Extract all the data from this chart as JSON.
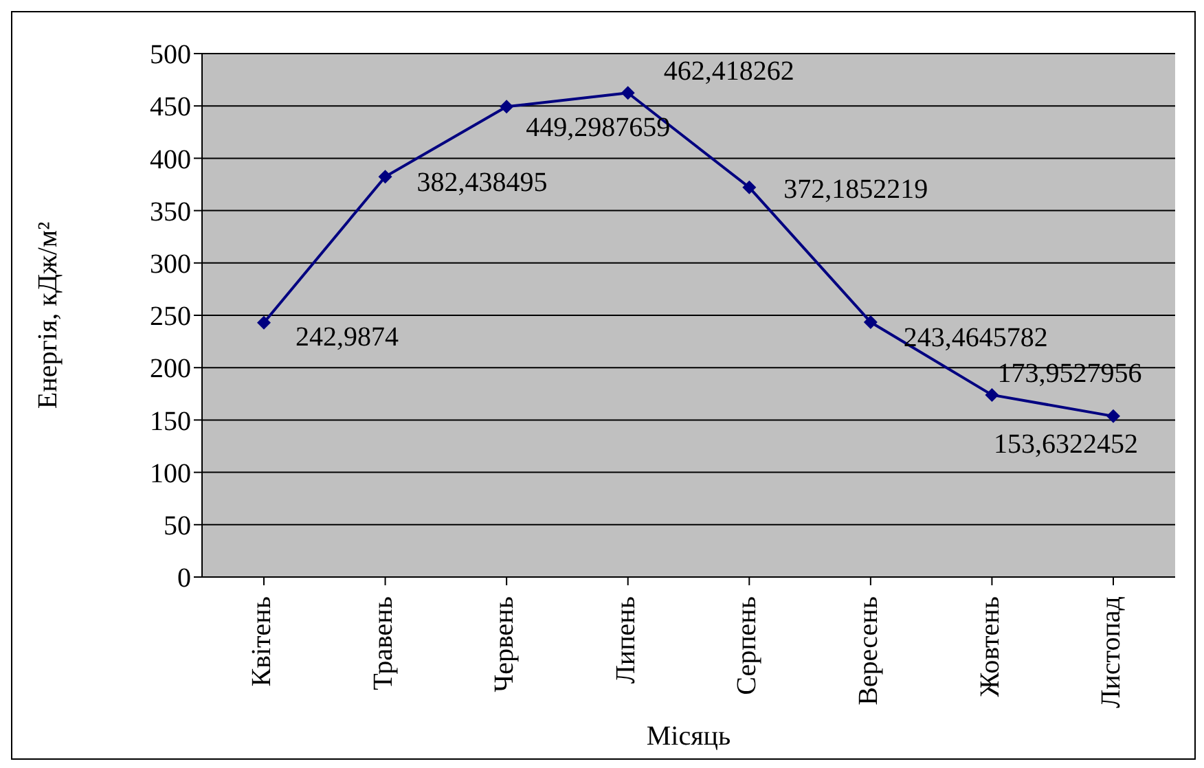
{
  "chart_data": {
    "type": "line",
    "xlabel": "Місяць",
    "ylabel": "Енергія, кДж/м²",
    "categories": [
      "Квітень",
      "Травень",
      "Червень",
      "Липень",
      "Серпень",
      "Вересень",
      "Жовтень",
      "Листопад"
    ],
    "series": [
      {
        "color": "#000080",
        "values": [
          242.9874,
          382.438495,
          449.2987659,
          462.418262,
          372.1852219,
          243.4645782,
          173.9527956,
          153.6322452
        ],
        "value_labels": [
          "242,9874",
          "382,438495",
          "449,2987659",
          "462,418262",
          "372,1852219",
          "243,4645782",
          "173,9527956",
          "153,6322452"
        ]
      }
    ],
    "ylim": [
      0,
      500
    ],
    "yticks": [
      0,
      50,
      100,
      150,
      200,
      250,
      300,
      350,
      400,
      450,
      500
    ],
    "grid": "y",
    "marker": "diamond",
    "line_style": "solid",
    "legend": false
  }
}
